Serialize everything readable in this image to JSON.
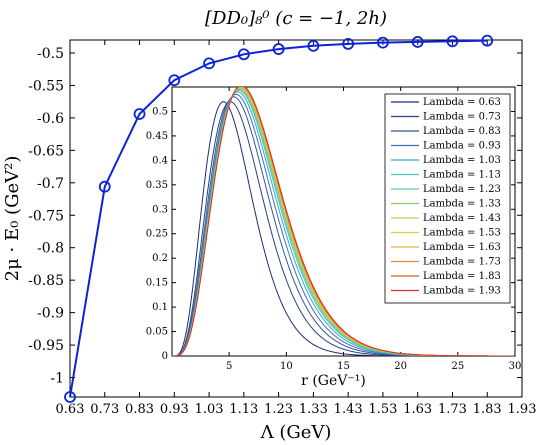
{
  "chart_data": [
    {
      "type": "line",
      "title": "[DD₀]₈⁰ (c = −1, 2h)",
      "xlabel": "Λ (GeV)",
      "ylabel": "2μ · E₀ (GeV²)",
      "xlim": [
        0.63,
        1.93
      ],
      "ylim": [
        -1.03,
        -0.48
      ],
      "x_ticks": [
        "0.63",
        "0.73",
        "0.83",
        "0.93",
        "1.03",
        "1.13",
        "1.23",
        "1.33",
        "1.43",
        "1.53",
        "1.63",
        "1.73",
        "1.83",
        "1.93"
      ],
      "y_ticks": [
        "-0.5",
        "-0.55",
        "-0.6",
        "-0.65",
        "-0.7",
        "-0.75",
        "-0.8",
        "-0.85",
        "-0.9",
        "-0.95",
        "-1"
      ],
      "grid": false,
      "color": "#0b24d9",
      "series": [
        {
          "x": [
            0.63,
            0.73,
            0.83,
            0.93,
            1.03,
            1.13,
            1.23,
            1.33,
            1.43,
            1.53,
            1.63,
            1.73,
            1.83
          ],
          "y": [
            -1.03,
            -0.706,
            -0.594,
            -0.542,
            -0.516,
            -0.502,
            -0.494,
            -0.489,
            -0.486,
            -0.484,
            -0.483,
            -0.482,
            -0.481
          ]
        }
      ]
    },
    {
      "type": "line",
      "title": "",
      "xlabel": "r (GeV⁻¹)",
      "ylabel": "",
      "xlim": [
        0,
        30
      ],
      "ylim": [
        0,
        0.55
      ],
      "x_ticks": [
        "5",
        "10",
        "15",
        "20",
        "25",
        "30"
      ],
      "y_ticks": [
        "0",
        "0.05",
        "0.1",
        "0.15",
        "0.2",
        "0.25",
        "0.3",
        "0.35",
        "0.4",
        "0.45",
        "0.5"
      ],
      "legend_position": "top-right",
      "series": [
        {
          "name": "Lambda = 0.63",
          "color": "#1c2d7a",
          "peak_r": 4.5,
          "peak": 0.52
        },
        {
          "name": "Lambda = 0.73",
          "color": "#27407f",
          "peak_r": 5.1,
          "peak": 0.52
        },
        {
          "name": "Lambda = 0.83",
          "color": "#35588f",
          "peak_r": 5.4,
          "peak": 0.53
        },
        {
          "name": "Lambda = 0.93",
          "color": "#3f6fbd",
          "peak_r": 5.6,
          "peak": 0.535
        },
        {
          "name": "Lambda = 1.03",
          "color": "#3aa5c9",
          "peak_r": 5.75,
          "peak": 0.54
        },
        {
          "name": "Lambda = 1.13",
          "color": "#4ec3c3",
          "peak_r": 5.85,
          "peak": 0.543
        },
        {
          "name": "Lambda = 1.23",
          "color": "#5ec9a9",
          "peak_r": 5.9,
          "peak": 0.545
        },
        {
          "name": "Lambda = 1.33",
          "color": "#8ccc6a",
          "peak_r": 5.95,
          "peak": 0.547
        },
        {
          "name": "Lambda = 1.43",
          "color": "#bcd24a",
          "peak_r": 5.98,
          "peak": 0.548
        },
        {
          "name": "Lambda = 1.53",
          "color": "#d9cf3c",
          "peak_r": 6.0,
          "peak": 0.549
        },
        {
          "name": "Lambda = 1.63",
          "color": "#e8b43a",
          "peak_r": 6.02,
          "peak": 0.55
        },
        {
          "name": "Lambda = 1.73",
          "color": "#ea8d35",
          "peak_r": 6.04,
          "peak": 0.551
        },
        {
          "name": "Lambda = 1.83",
          "color": "#e55e2c",
          "peak_r": 6.06,
          "peak": 0.552
        },
        {
          "name": "Lambda = 1.93",
          "color": "#d9332a",
          "peak_r": 6.08,
          "peak": 0.553
        }
      ]
    }
  ]
}
